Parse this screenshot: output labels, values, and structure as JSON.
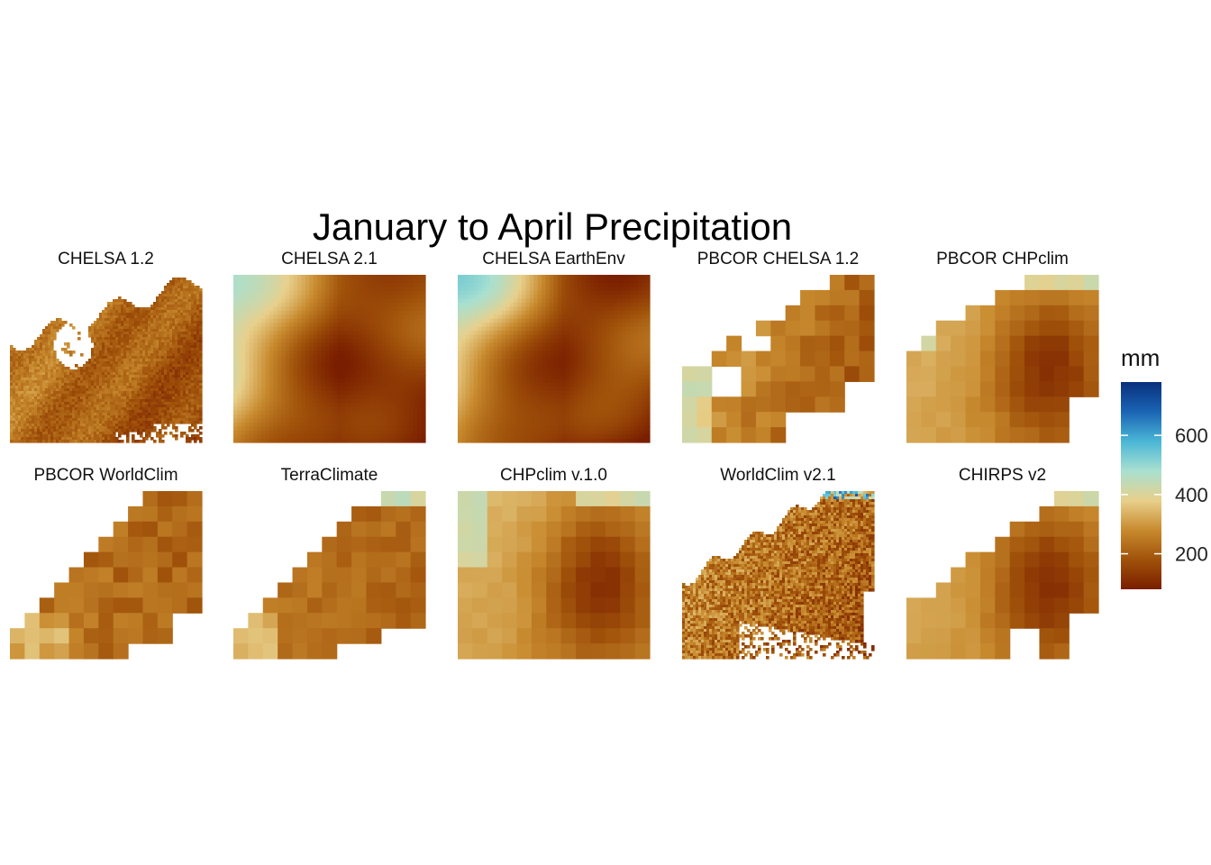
{
  "chart_data": {
    "type": "heatmap",
    "title": "January to April Precipitation",
    "panels": [
      {
        "name": "CHELSA 1.2",
        "resolution": "fine"
      },
      {
        "name": "CHELSA 2.1",
        "resolution": "smooth"
      },
      {
        "name": "CHELSA EarthEnv",
        "resolution": "smooth"
      },
      {
        "name": "PBCOR CHELSA 1.2",
        "resolution": "coarse"
      },
      {
        "name": "PBCOR CHPclim",
        "resolution": "coarse"
      },
      {
        "name": "PBCOR WorldClim",
        "resolution": "coarse"
      },
      {
        "name": "TerraClimate",
        "resolution": "coarse"
      },
      {
        "name": "CHPclim v.1.0",
        "resolution": "coarse"
      },
      {
        "name": "WorldClim v2.1",
        "resolution": "fine"
      },
      {
        "name": "CHIRPS v2",
        "resolution": "coarse"
      }
    ],
    "legend": {
      "title": "mm",
      "ticks": [
        200,
        400,
        600
      ],
      "range": [
        80,
        780
      ],
      "placement": "right",
      "colors": [
        "#7a1e00",
        "#a0520a",
        "#c88a2e",
        "#e8d08c",
        "#a8e0d0",
        "#4ab6d6",
        "#1a64b4",
        "#08307c"
      ]
    },
    "grid": false
  }
}
